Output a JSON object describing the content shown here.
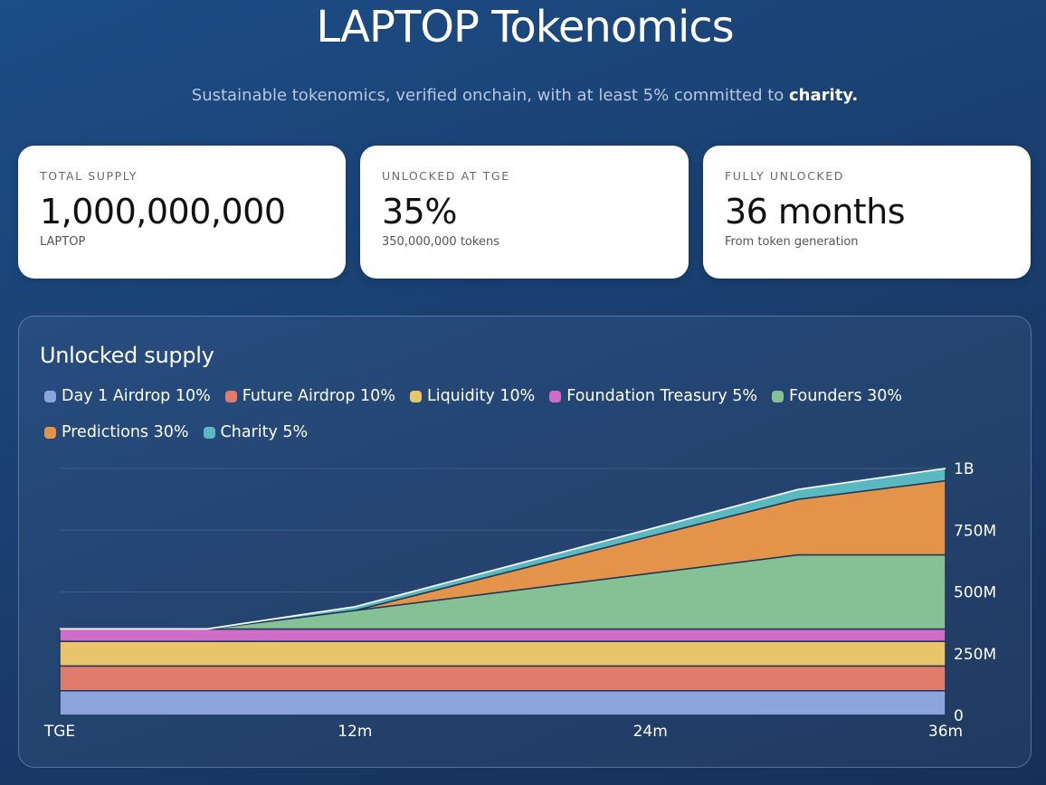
{
  "header": {
    "title": "LAPTOP Tokenomics",
    "subtitle_prefix": "Sustainable tokenomics, verified onchain, with at least 5% committed to ",
    "subtitle_highlight": "charity."
  },
  "stats": [
    {
      "label": "TOTAL SUPPLY",
      "value": "1,000,000,000",
      "sub": "LAPTOP"
    },
    {
      "label": "UNLOCKED AT TGE",
      "value": "35%",
      "sub": "350,000,000 tokens"
    },
    {
      "label": "FULLY UNLOCKED",
      "value": "36 months",
      "sub": "From token generation"
    }
  ],
  "colors": {
    "background": "#1a3f70",
    "card": "#ffffff"
  },
  "chart_data": {
    "type": "area",
    "title": "Unlocked supply",
    "stacked": true,
    "x": [
      0,
      6,
      12,
      24,
      30,
      36
    ],
    "xticks": [
      {
        "value": 0,
        "label": "TGE"
      },
      {
        "value": 12,
        "label": "12m"
      },
      {
        "value": 24,
        "label": "24m"
      },
      {
        "value": 36,
        "label": "36m"
      }
    ],
    "yticks": [
      {
        "value": 0,
        "label": "0"
      },
      {
        "value": 250,
        "label": "250M"
      },
      {
        "value": 500,
        "label": "500M"
      },
      {
        "value": 750,
        "label": "750M"
      },
      {
        "value": 1000,
        "label": "1B"
      }
    ],
    "ylim": [
      0,
      1000
    ],
    "xlim": [
      0,
      36
    ],
    "y_unit": "millions of tokens",
    "grid": true,
    "legend_position": "top-left",
    "series": [
      {
        "name": "Day 1 Airdrop 10%",
        "color": "#8ba5dc",
        "values": [
          100,
          100,
          100,
          100,
          100,
          100
        ]
      },
      {
        "name": "Future Airdrop 10%",
        "color": "#e07c6c",
        "values": [
          100,
          100,
          100,
          100,
          100,
          100
        ]
      },
      {
        "name": "Liquidity 10%",
        "color": "#e8c46a",
        "values": [
          100,
          100,
          100,
          100,
          100,
          100
        ]
      },
      {
        "name": "Foundation Treasury 5%",
        "color": "#cf6cc8",
        "values": [
          50,
          50,
          50,
          50,
          50,
          50
        ]
      },
      {
        "name": "Founders 30%",
        "color": "#86c095",
        "values": [
          0,
          0,
          75,
          225,
          300,
          300
        ]
      },
      {
        "name": "Predictions 30%",
        "color": "#e3944a",
        "values": [
          0,
          0,
          0,
          150,
          225,
          300
        ]
      },
      {
        "name": "Charity 5%",
        "color": "#5ab8c0",
        "values": [
          0,
          0,
          15,
          30,
          40,
          50
        ]
      }
    ]
  }
}
